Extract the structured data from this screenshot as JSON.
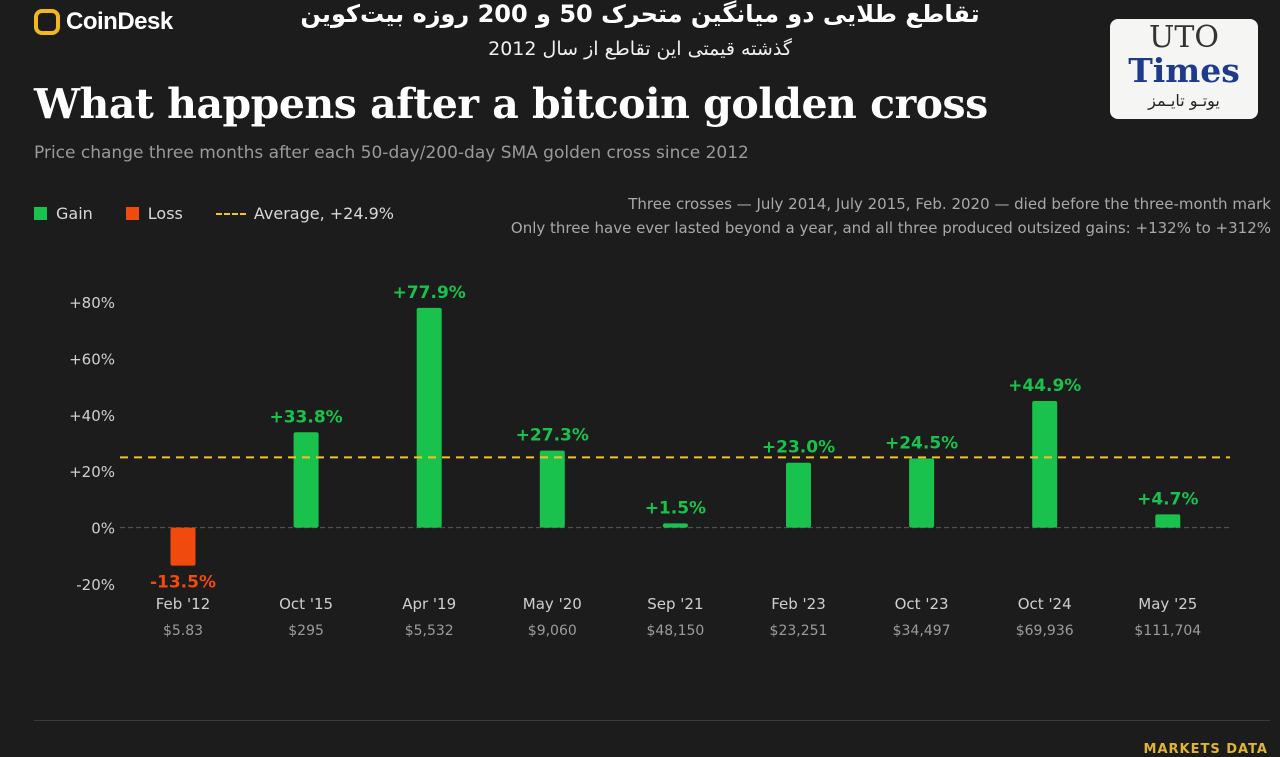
{
  "brand": {
    "name": "CoinDesk",
    "mark_color": "#f2b81c"
  },
  "overlay": {
    "title_fa": "تقاطع طلایی دو میانگین متحرک 50 و 200 روزه بیت‌کوین",
    "subtitle_fa": "گذشته قیمتی این تقاطع از سال 2012",
    "watermark": {
      "line1": "UTO",
      "line2": "Times",
      "line3": "یوتـو تایـمز"
    }
  },
  "header": {
    "title": "What happens after a bitcoin golden cross",
    "subtitle": "Price change three months after each 50-day/200-day SMA golden cross since 2012"
  },
  "legend": {
    "gain": "Gain",
    "loss": "Loss",
    "average": "Average, +24.9%"
  },
  "notes": [
    "Three crosses — July 2014, July 2015, Feb. 2020 — died before the three-month mark",
    "Only three have ever lasted beyond a year, and all three produced outsized gains: +132% to +312%"
  ],
  "colors": {
    "gain": "#18c24c",
    "loss": "#f04a0e",
    "average": "#f2c12e",
    "background": "#1c1c1c"
  },
  "footer": {
    "right": "MARKETS DATA"
  },
  "chart_data": {
    "type": "bar",
    "categories": [
      "Feb '12",
      "Oct '15",
      "Apr '19",
      "May '20",
      "Sep '21",
      "Feb '23",
      "Oct '23",
      "Oct '24",
      "May '25"
    ],
    "prices": [
      "$5.83",
      "$295",
      "$5,532",
      "$9,060",
      "$48,150",
      "$23,251",
      "$34,497",
      "$69,936",
      "$111,704"
    ],
    "values": [
      -13.5,
      33.8,
      77.9,
      27.3,
      1.5,
      23.0,
      24.5,
      44.9,
      4.7
    ],
    "value_labels": [
      "-13.5%",
      "+33.8%",
      "+77.9%",
      "+27.3%",
      "+1.5%",
      "+23.0%",
      "+24.5%",
      "+44.9%",
      "+4.7%"
    ],
    "average": 24.9,
    "y_ticks": [
      80,
      60,
      40,
      20,
      0,
      -20
    ],
    "y_tick_labels": [
      "+80%",
      "+60%",
      "+40%",
      "+20%",
      "0%",
      "-20%"
    ],
    "ylim": [
      -20,
      80
    ],
    "grid": false,
    "legend_position": "top-left"
  }
}
